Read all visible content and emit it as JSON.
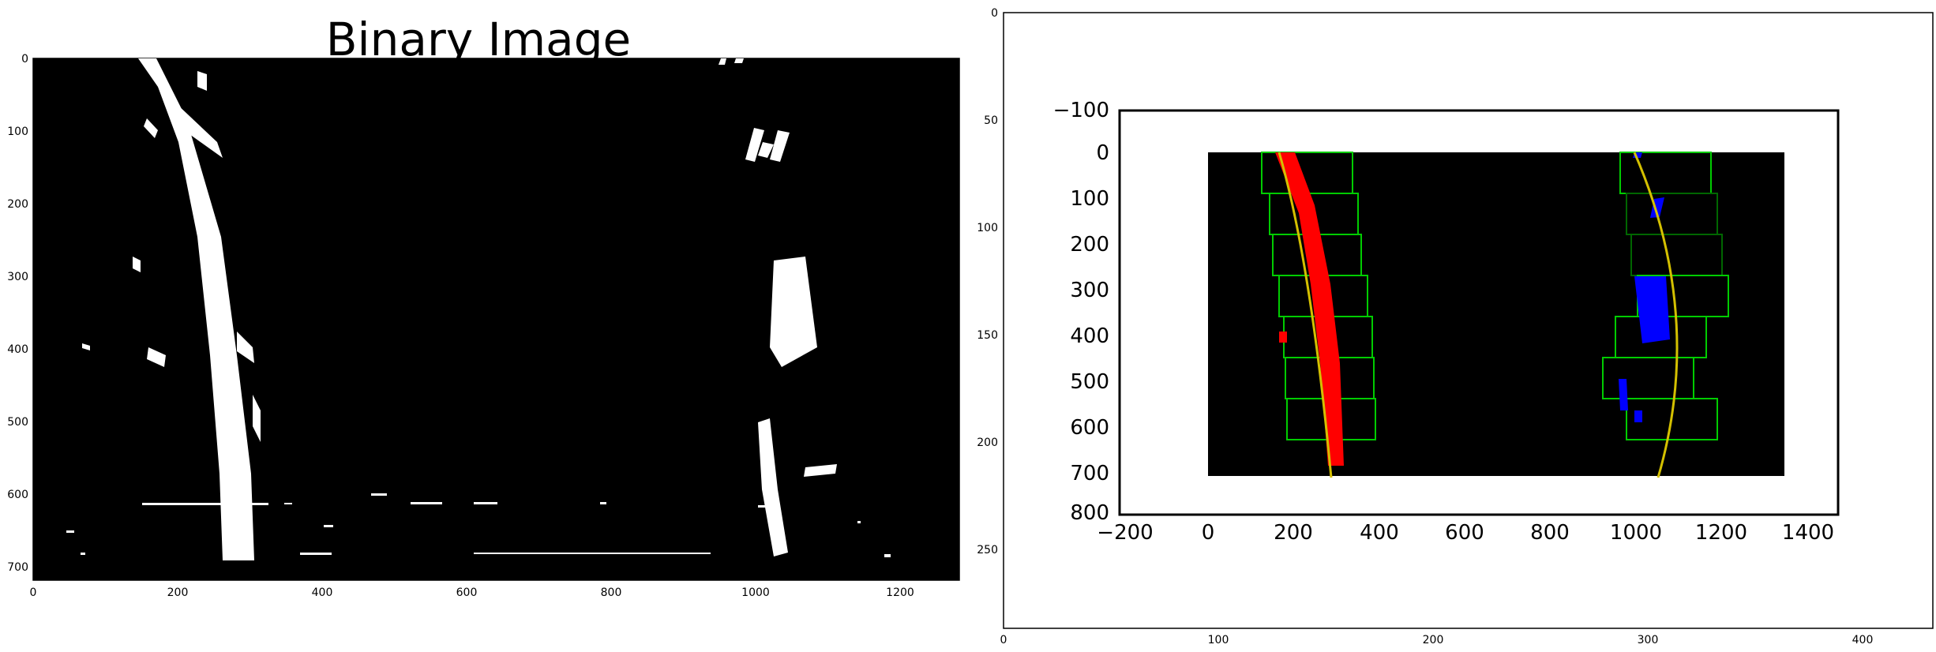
{
  "left_panel": {
    "title": "Binary Image",
    "x_ticks": [
      "0",
      "200",
      "400",
      "600",
      "800",
      "1000",
      "1200"
    ],
    "y_ticks": [
      "0",
      "100",
      "200",
      "300",
      "400",
      "500",
      "600",
      "700"
    ]
  },
  "right_panel": {
    "outer_x_ticks": [
      "0",
      "100",
      "200",
      "300",
      "400"
    ],
    "outer_y_ticks": [
      "0",
      "50",
      "100",
      "150",
      "200",
      "250"
    ],
    "inner_x_ticks": [
      "−200",
      "0",
      "200",
      "400",
      "600",
      "800",
      "1000",
      "1200",
      "1400"
    ],
    "inner_y_ticks": [
      "−100",
      "0",
      "100",
      "200",
      "300",
      "400",
      "500",
      "600",
      "700",
      "800"
    ]
  },
  "colors": {
    "background": "#ffffff",
    "image_black": "#000000",
    "lane_white": "#ffffff",
    "left_lane_pixels": "#ff0000",
    "right_lane_pixels": "#0000ff",
    "window_boxes": "#00cc00",
    "fit_line": "#d4c000"
  }
}
